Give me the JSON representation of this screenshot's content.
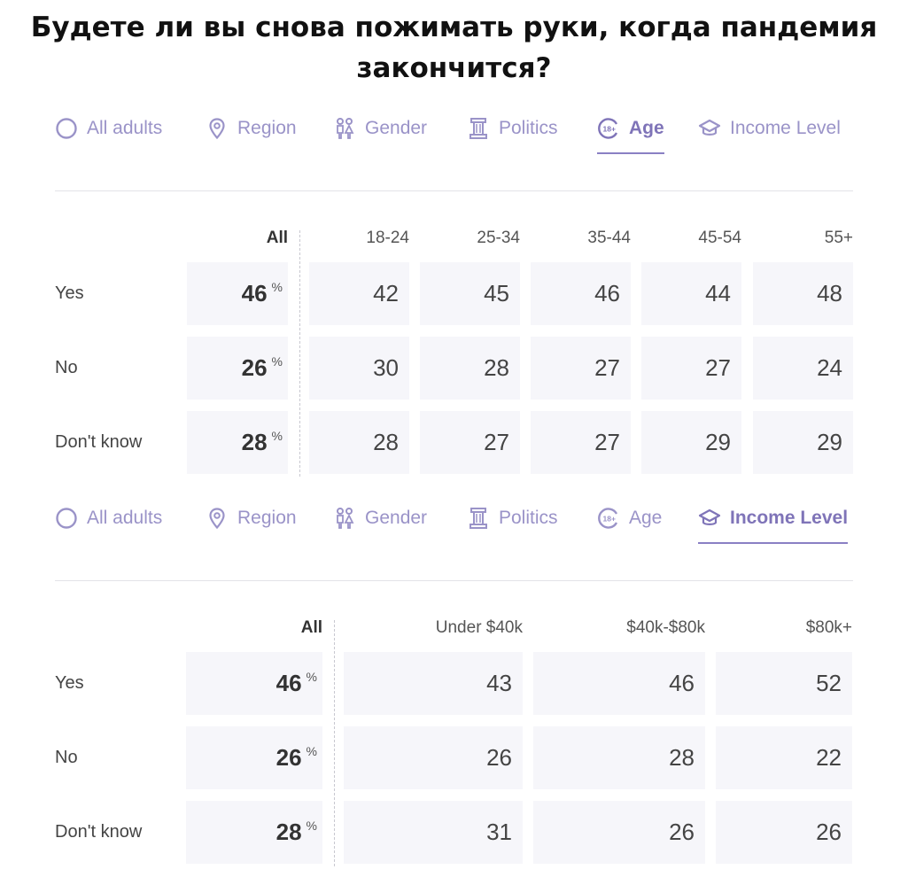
{
  "title_lines": [
    "Будете ли вы снова пожимать руки, когда пандемия",
    "закончится?"
  ],
  "tabs": [
    "All adults",
    "Region",
    "Gender",
    "Politics",
    "Age",
    "Income Level"
  ],
  "accent_color": "#8a80c4",
  "tab_icons": [
    "circle-icon",
    "map-pin-icon",
    "people-icon",
    "column-icon",
    "age-18-plus-icon",
    "graduation-cap-icon"
  ],
  "chart_data": [
    {
      "type": "table",
      "active_tab": "Age",
      "all_label": "All",
      "percent_sign": "%",
      "columns": [
        "18-24",
        "25-34",
        "35-44",
        "45-54",
        "55+"
      ],
      "rows": [
        {
          "label": "Yes",
          "all": "46",
          "values": [
            "42",
            "45",
            "46",
            "44",
            "48"
          ]
        },
        {
          "label": "No",
          "all": "26",
          "values": [
            "30",
            "28",
            "27",
            "27",
            "24"
          ]
        },
        {
          "label": "Don't know",
          "all": "28",
          "values": [
            "28",
            "27",
            "27",
            "29",
            "29"
          ]
        }
      ]
    },
    {
      "type": "table",
      "active_tab": "Income Level",
      "all_label": "All",
      "percent_sign": "%",
      "columns": [
        "Under $40k",
        "$40k-$80k",
        "$80k+"
      ],
      "rows": [
        {
          "label": "Yes",
          "all": "46",
          "values": [
            "43",
            "46",
            "52"
          ]
        },
        {
          "label": "No",
          "all": "26",
          "values": [
            "26",
            "28",
            "22"
          ]
        },
        {
          "label": "Don't know",
          "all": "28",
          "values": [
            "31",
            "26",
            "26"
          ]
        }
      ]
    }
  ]
}
